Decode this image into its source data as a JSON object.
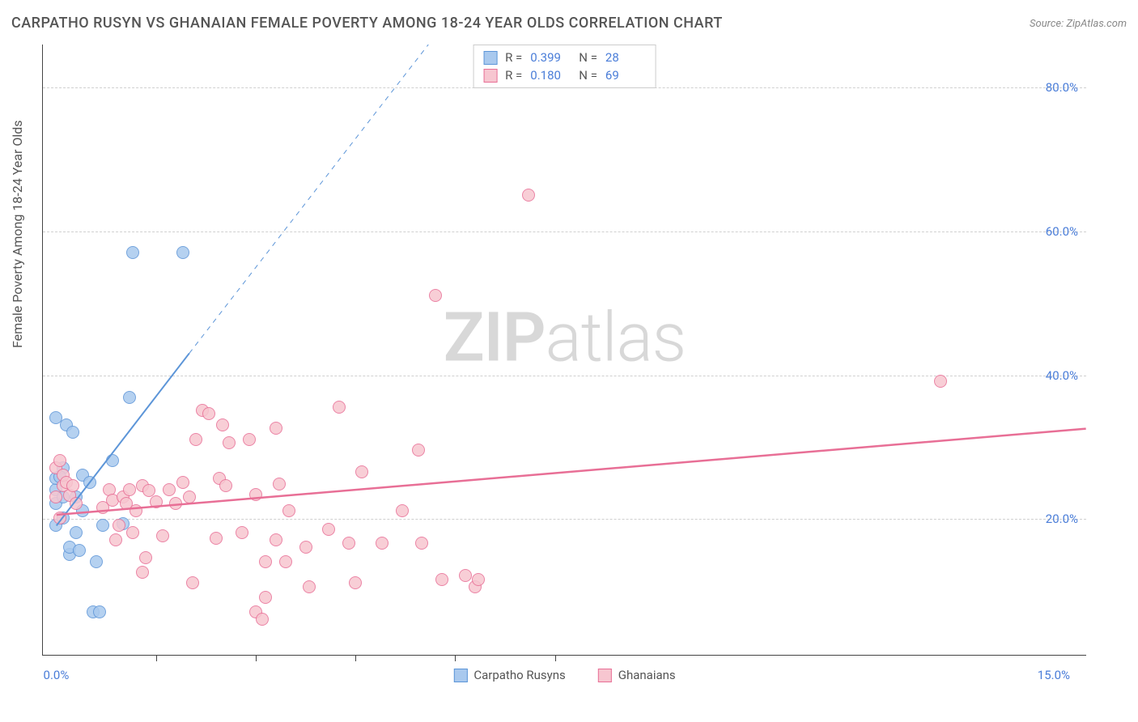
{
  "title": "CARPATHO RUSYN VS GHANAIAN FEMALE POVERTY AMONG 18-24 YEAR OLDS CORRELATION CHART",
  "source_prefix": "Source: ",
  "source": "ZipAtlas.com",
  "watermark_bold": "ZIP",
  "watermark_light": "atlas",
  "y_axis_label": "Female Poverty Among 18-24 Year Olds",
  "chart": {
    "type": "scatter",
    "background_color": "#ffffff",
    "grid_color": "#d0d0d0",
    "axis_color": "#444444",
    "tick_label_color": "#4a7dd8",
    "xlim": [
      -0.2,
      15.5
    ],
    "ylim": [
      1,
      86
    ],
    "x_ticks": [
      0.0,
      15.0
    ],
    "x_tick_labels": [
      "0.0%",
      "15.0%"
    ],
    "x_minor_ticks": [
      1.5,
      3.0,
      4.5,
      6.0,
      7.5
    ],
    "y_ticks": [
      20.0,
      40.0,
      60.0,
      80.0
    ],
    "y_tick_labels": [
      "20.0%",
      "40.0%",
      "60.0%",
      "80.0%"
    ],
    "tick_fontsize": 15,
    "label_fontsize": 16,
    "title_fontsize": 18,
    "point_radius": 8,
    "point_opacity": 0.85,
    "series": [
      {
        "name": "Carpatho Rusyns",
        "fill_color": "#a9c9ee",
        "stroke_color": "#5c95d8",
        "r_value": "0.399",
        "n_value": "28",
        "trend_line": {
          "x1": 0.0,
          "y1": 19.0,
          "x2": 2.0,
          "y2": 43.0,
          "dash_to_x": 5.6,
          "dash_to_y": 86.0,
          "width": 2
        },
        "points": [
          {
            "x": 0.0,
            "y": 19.0
          },
          {
            "x": 0.0,
            "y": 22.0
          },
          {
            "x": 0.0,
            "y": 24.0
          },
          {
            "x": 0.0,
            "y": 25.5
          },
          {
            "x": 0.0,
            "y": 34.0
          },
          {
            "x": 0.1,
            "y": 20.0
          },
          {
            "x": 0.1,
            "y": 23.0
          },
          {
            "x": 0.1,
            "y": 27.0
          },
          {
            "x": 0.15,
            "y": 33.0
          },
          {
            "x": 0.2,
            "y": 15.0
          },
          {
            "x": 0.2,
            "y": 16.0
          },
          {
            "x": 0.25,
            "y": 32.0
          },
          {
            "x": 0.3,
            "y": 18.0
          },
          {
            "x": 0.3,
            "y": 23.0
          },
          {
            "x": 0.35,
            "y": 15.5
          },
          {
            "x": 0.4,
            "y": 21.0
          },
          {
            "x": 0.4,
            "y": 26.0
          },
          {
            "x": 0.5,
            "y": 25.0
          },
          {
            "x": 0.55,
            "y": 7.0
          },
          {
            "x": 0.6,
            "y": 14.0
          },
          {
            "x": 0.65,
            "y": 7.0
          },
          {
            "x": 0.7,
            "y": 19.0
          },
          {
            "x": 0.85,
            "y": 28.0
          },
          {
            "x": 1.0,
            "y": 19.2
          },
          {
            "x": 1.1,
            "y": 36.8
          },
          {
            "x": 1.15,
            "y": 57.0
          },
          {
            "x": 1.9,
            "y": 57.0
          },
          {
            "x": 0.05,
            "y": 25.8
          }
        ]
      },
      {
        "name": "Ghanaians",
        "fill_color": "#f7c6d0",
        "stroke_color": "#e86f96",
        "r_value": "0.180",
        "n_value": "69",
        "trend_line": {
          "x1": 0.0,
          "y1": 20.5,
          "x2": 15.5,
          "y2": 32.5,
          "width": 2.5
        },
        "points": [
          {
            "x": 0.0,
            "y": 23.0
          },
          {
            "x": 0.0,
            "y": 27.0
          },
          {
            "x": 0.05,
            "y": 20.0
          },
          {
            "x": 0.05,
            "y": 28.0
          },
          {
            "x": 0.1,
            "y": 24.5
          },
          {
            "x": 0.1,
            "y": 26.0
          },
          {
            "x": 0.15,
            "y": 25.0
          },
          {
            "x": 0.2,
            "y": 23.2
          },
          {
            "x": 0.25,
            "y": 24.5
          },
          {
            "x": 0.3,
            "y": 22.0
          },
          {
            "x": 0.7,
            "y": 21.5
          },
          {
            "x": 0.8,
            "y": 24.0
          },
          {
            "x": 0.85,
            "y": 22.5
          },
          {
            "x": 0.9,
            "y": 17.0
          },
          {
            "x": 0.95,
            "y": 19.0
          },
          {
            "x": 1.0,
            "y": 23.0
          },
          {
            "x": 1.05,
            "y": 22.0
          },
          {
            "x": 1.1,
            "y": 24.0
          },
          {
            "x": 1.15,
            "y": 18.0
          },
          {
            "x": 1.2,
            "y": 21.0
          },
          {
            "x": 1.3,
            "y": 24.5
          },
          {
            "x": 1.3,
            "y": 12.5
          },
          {
            "x": 1.35,
            "y": 14.5
          },
          {
            "x": 1.4,
            "y": 23.8
          },
          {
            "x": 1.5,
            "y": 22.3
          },
          {
            "x": 1.6,
            "y": 17.5
          },
          {
            "x": 1.7,
            "y": 24.0
          },
          {
            "x": 1.8,
            "y": 22.0
          },
          {
            "x": 1.9,
            "y": 25.0
          },
          {
            "x": 2.0,
            "y": 23.0
          },
          {
            "x": 2.05,
            "y": 11.0
          },
          {
            "x": 2.1,
            "y": 31.0
          },
          {
            "x": 2.2,
            "y": 35.0
          },
          {
            "x": 2.3,
            "y": 34.5
          },
          {
            "x": 2.4,
            "y": 17.2
          },
          {
            "x": 2.45,
            "y": 25.5
          },
          {
            "x": 2.5,
            "y": 33.0
          },
          {
            "x": 2.55,
            "y": 24.5
          },
          {
            "x": 2.6,
            "y": 30.5
          },
          {
            "x": 2.8,
            "y": 18.0
          },
          {
            "x": 2.9,
            "y": 31.0
          },
          {
            "x": 3.0,
            "y": 23.3
          },
          {
            "x": 3.0,
            "y": 7.0
          },
          {
            "x": 3.1,
            "y": 6.0
          },
          {
            "x": 3.15,
            "y": 14.0
          },
          {
            "x": 3.15,
            "y": 9.0
          },
          {
            "x": 3.3,
            "y": 17.0
          },
          {
            "x": 3.3,
            "y": 32.5
          },
          {
            "x": 3.35,
            "y": 24.8
          },
          {
            "x": 3.45,
            "y": 14.0
          },
          {
            "x": 3.5,
            "y": 21.0
          },
          {
            "x": 3.75,
            "y": 16.0
          },
          {
            "x": 3.8,
            "y": 10.5
          },
          {
            "x": 4.1,
            "y": 18.5
          },
          {
            "x": 4.25,
            "y": 35.5
          },
          {
            "x": 4.4,
            "y": 16.5
          },
          {
            "x": 4.5,
            "y": 11.0
          },
          {
            "x": 4.6,
            "y": 26.5
          },
          {
            "x": 4.9,
            "y": 16.5
          },
          {
            "x": 5.2,
            "y": 21.0
          },
          {
            "x": 5.45,
            "y": 29.5
          },
          {
            "x": 5.5,
            "y": 16.5
          },
          {
            "x": 5.7,
            "y": 51.0
          },
          {
            "x": 5.8,
            "y": 11.5
          },
          {
            "x": 6.15,
            "y": 12.0
          },
          {
            "x": 6.3,
            "y": 10.5
          },
          {
            "x": 6.35,
            "y": 11.5
          },
          {
            "x": 7.1,
            "y": 65.0
          },
          {
            "x": 13.3,
            "y": 39.0
          }
        ]
      }
    ]
  },
  "legend_top": {
    "r_label": "R =",
    "n_label": "N ="
  },
  "legend_bottom": [
    "Carpatho Rusyns",
    "Ghanaians"
  ]
}
